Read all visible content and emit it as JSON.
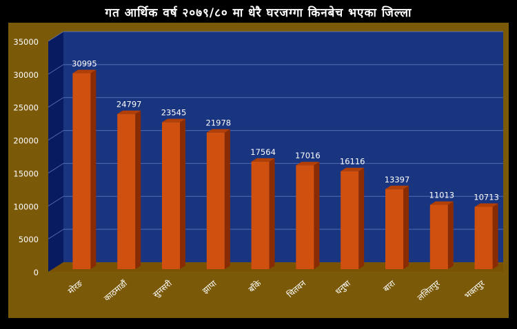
{
  "chart_data": {
    "type": "bar",
    "title": "गत आर्थिक वर्ष २०७९/८० मा धेरै घरजग्गा किनबेच भएका जिल्ला",
    "categories": [
      "मोरङ",
      "काठमाडौं",
      "सुनसरी",
      "झापा",
      "बाँके",
      "चितवन",
      "धनुषा",
      "बारा",
      "ललितपुर",
      "भक्तपुर"
    ],
    "values": [
      30995,
      24797,
      23545,
      21978,
      17564,
      17016,
      16116,
      13397,
      11013,
      10713
    ],
    "ylim": [
      0,
      35000
    ],
    "yticks": [
      0,
      5000,
      10000,
      15000,
      20000,
      25000,
      30000,
      35000
    ],
    "xlabel": "",
    "ylabel": "",
    "grid": true,
    "legend": "none"
  },
  "colors": {
    "background": "#000000",
    "frame": "#7a5a08",
    "plot_back": "#1a3580",
    "plot_side": "#081a60",
    "floor": "#7a5204",
    "bar_front": "#d0500f",
    "bar_top": "#b23f06",
    "bar_side": "#8a2c03",
    "gridline": "#6c86c8",
    "text": "#ffffff",
    "label": "#ffffff"
  }
}
